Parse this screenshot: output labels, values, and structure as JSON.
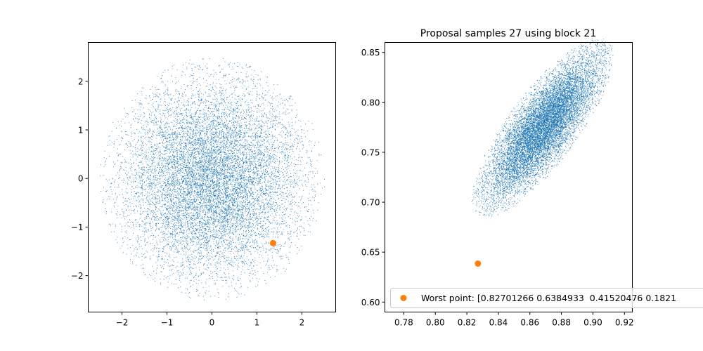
{
  "chart_data": [
    {
      "type": "scatter",
      "title": "",
      "xlabel": "",
      "ylabel": "",
      "xlim": [
        -2.75,
        2.75
      ],
      "ylim": [
        -2.75,
        2.8
      ],
      "xticks": [
        -2,
        -1,
        0,
        1,
        2
      ],
      "yticks": [
        -2,
        -1,
        0,
        1,
        2
      ],
      "xtick_labels": [
        "−2",
        "−1",
        "0",
        "1",
        "2"
      ],
      "ytick_labels": [
        "−2",
        "−1",
        "0",
        "1",
        "2"
      ],
      "grid": false,
      "series": [
        {
          "role": "samples",
          "color": "#1f77b4",
          "distribution": "standard normal cloud, truncated near radius 2.5",
          "count": 12000,
          "center": [
            0,
            0
          ],
          "std": [
            1.0,
            1.0
          ],
          "correlation": 0.0,
          "max_radius": 2.5
        },
        {
          "role": "highlight",
          "color": "#ff7f0e",
          "points": [
            {
              "x": 1.36,
              "y": -1.33
            }
          ]
        }
      ]
    },
    {
      "type": "scatter",
      "title": "Proposal samples 27 using block 21",
      "xlabel": "",
      "ylabel": "",
      "xlim": [
        0.768,
        0.925
      ],
      "ylim": [
        0.59,
        0.86
      ],
      "xticks": [
        0.78,
        0.8,
        0.82,
        0.84,
        0.86,
        0.88,
        0.9,
        0.92
      ],
      "yticks": [
        0.6,
        0.65,
        0.7,
        0.75,
        0.8,
        0.85
      ],
      "xtick_labels": [
        "0.78",
        "0.80",
        "0.82",
        "0.84",
        "0.86",
        "0.88",
        "0.90",
        "0.92"
      ],
      "ytick_labels": [
        "0.60",
        "0.65",
        "0.70",
        "0.75",
        "0.80",
        "0.85"
      ],
      "grid": false,
      "legend": {
        "placement": "lower-left",
        "entries": [
          {
            "label": "Worst point: [0.82701266 0.6384933  0.41520476 0.1821",
            "color": "#ff7f0e",
            "marker": "circle"
          }
        ]
      },
      "series": [
        {
          "role": "samples",
          "color": "#1f77b4",
          "distribution": "correlated elliptical cloud",
          "count": 12000,
          "center": [
            0.868,
            0.775
          ],
          "std": [
            0.018,
            0.036
          ],
          "correlation": 0.8,
          "max_radius": 2.5
        },
        {
          "name": "Worst point: [0.82701266 0.6384933  0.41520476 0.1821",
          "role": "highlight",
          "color": "#ff7f0e",
          "points": [
            {
              "x": 0.827,
              "y": 0.6385
            }
          ]
        }
      ]
    }
  ]
}
